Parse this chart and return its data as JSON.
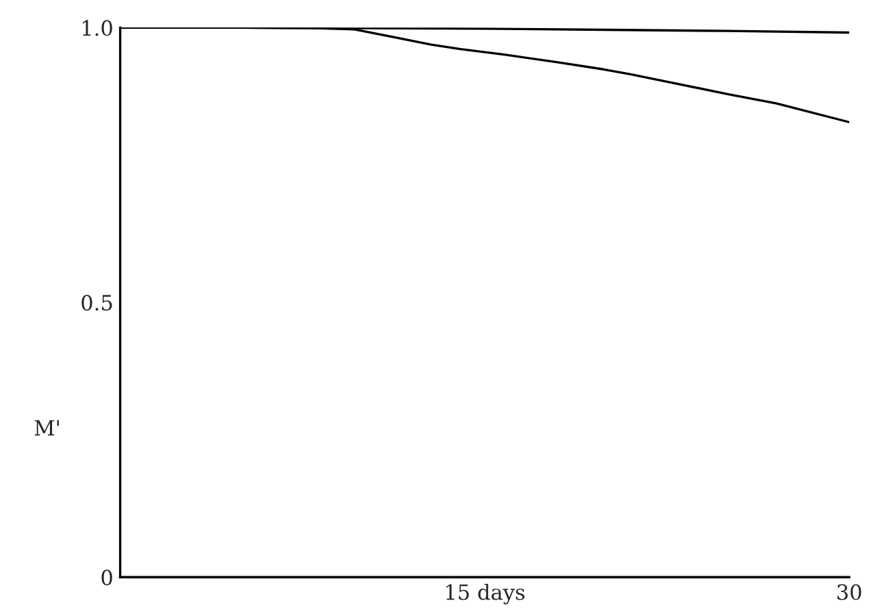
{
  "chart_data": {
    "type": "line",
    "ylabel": "M'",
    "xlim": [
      0,
      30
    ],
    "ylim": [
      0,
      1.0
    ],
    "xticks": [
      {
        "value": 15,
        "label": "15 days"
      },
      30
    ],
    "yticks": [
      0,
      0.5,
      {
        "value": 1.0,
        "label": "1.0"
      }
    ],
    "grid": false,
    "legend": false,
    "series": [
      {
        "color": "#000000",
        "x": [
          0,
          5,
          10,
          15,
          20,
          25,
          30
        ],
        "values": [
          1.0,
          1.0,
          0.999,
          0.998,
          0.996,
          0.994,
          0.991
        ]
      },
      {
        "color": "#000000",
        "x": [
          0,
          5,
          8,
          9.6,
          11,
          12.8,
          14,
          15.8,
          18,
          19.9,
          21,
          22.9,
          25,
          27,
          30
        ],
        "values": [
          1.0,
          1.0,
          0.999,
          0.997,
          0.985,
          0.969,
          0.961,
          0.951,
          0.937,
          0.924,
          0.915,
          0.898,
          0.879,
          0.862,
          0.828
        ]
      }
    ]
  }
}
